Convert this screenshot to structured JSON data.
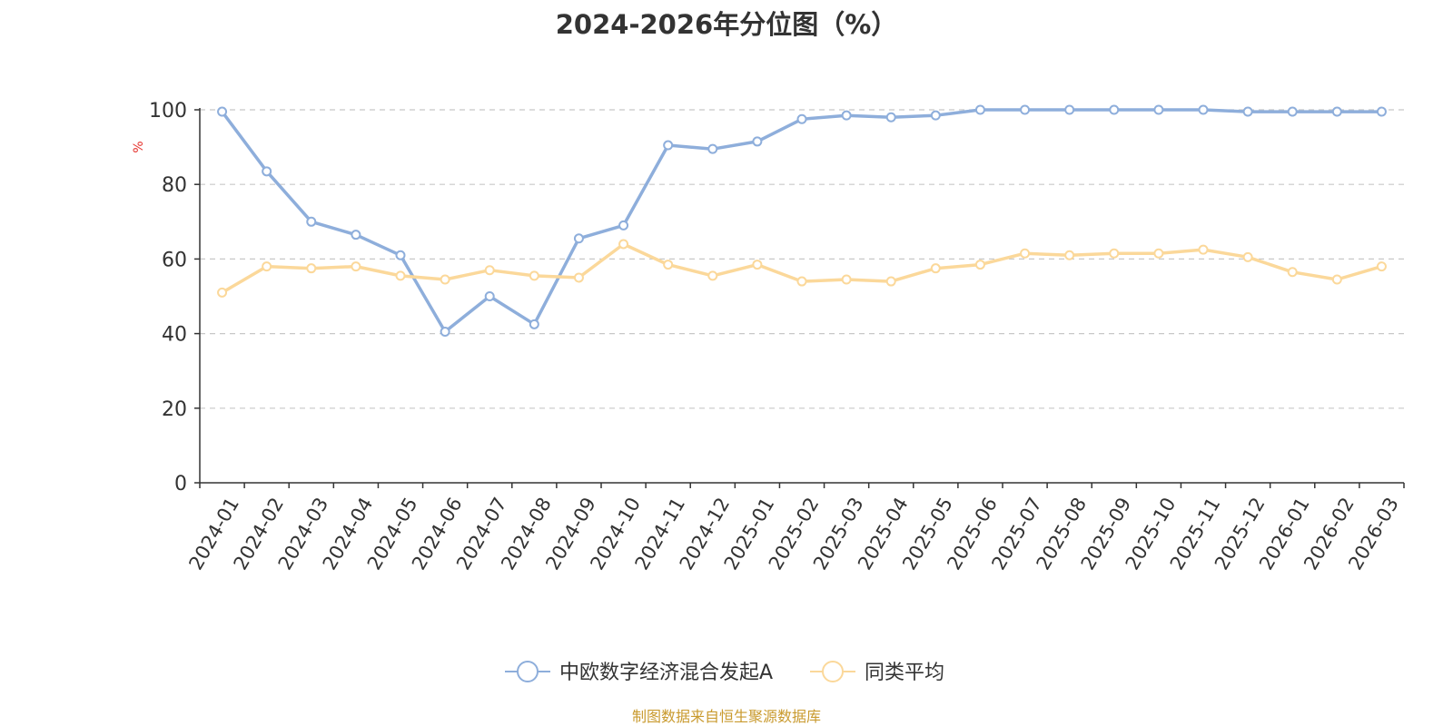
{
  "chart_data": {
    "type": "line",
    "title": "2024-2026年分位图（%）",
    "ylabel": "%",
    "xlabel": "",
    "ylim": [
      0,
      100
    ],
    "yticks": [
      0,
      20,
      40,
      60,
      80,
      100
    ],
    "grid": true,
    "legend_position": "bottom",
    "categories": [
      "2024-01",
      "2024-02",
      "2024-03",
      "2024-04",
      "2024-05",
      "2024-06",
      "2024-07",
      "2024-08",
      "2024-09",
      "2024-10",
      "2024-11",
      "2024-12",
      "2025-01",
      "2025-02",
      "2025-03",
      "2025-04",
      "2025-05",
      "2025-06",
      "2025-07",
      "2025-08",
      "2025-09",
      "2025-10",
      "2025-11",
      "2025-12",
      "2026-01",
      "2026-02",
      "2026-03"
    ],
    "series": [
      {
        "name": "中欧数字经济混合发起A",
        "color": "#8eaedb",
        "values": [
          99.5,
          83.5,
          70.0,
          66.5,
          61.0,
          40.5,
          50.0,
          42.5,
          65.5,
          69.0,
          90.5,
          89.5,
          91.5,
          97.5,
          98.5,
          98.0,
          98.5,
          100.0,
          100.0,
          100.0,
          100.0,
          100.0,
          100.0,
          99.5,
          99.5,
          99.5,
          99.5
        ]
      },
      {
        "name": "同类平均",
        "color": "#fbd89a",
        "values": [
          51.0,
          58.0,
          57.5,
          58.0,
          55.5,
          54.5,
          57.0,
          55.5,
          55.0,
          64.0,
          58.5,
          55.5,
          58.5,
          54.0,
          54.5,
          54.0,
          57.5,
          58.5,
          61.5,
          61.0,
          61.5,
          61.5,
          62.5,
          60.5,
          56.5,
          54.5,
          58.0
        ]
      }
    ],
    "source": "制图数据来自恒生聚源数据库"
  }
}
